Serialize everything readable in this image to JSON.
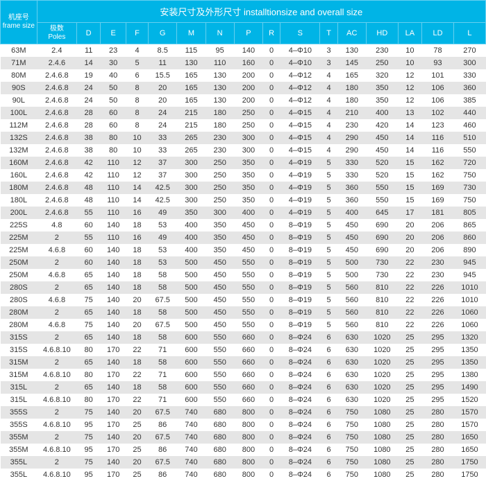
{
  "header": {
    "title": "安装尺寸及外形尺寸 installtionsize and overall size",
    "frame_cn": "机座号",
    "frame_en": "frame size",
    "poles_cn": "极数",
    "poles_en": "Poles",
    "cols": [
      "D",
      "E",
      "F",
      "G",
      "M",
      "N",
      "P",
      "R",
      "S",
      "T",
      "AC",
      "HD",
      "LA",
      "LD",
      "L"
    ]
  },
  "rows": [
    [
      "63M",
      "2.4",
      "11",
      "23",
      "4",
      "8.5",
      "115",
      "95",
      "140",
      "0",
      "4–Φ10",
      "3",
      "130",
      "230",
      "10",
      "78",
      "270"
    ],
    [
      "71M",
      "2.4.6",
      "14",
      "30",
      "5",
      "11",
      "130",
      "110",
      "160",
      "0",
      "4–Φ10",
      "3",
      "145",
      "250",
      "10",
      "93",
      "300"
    ],
    [
      "80M",
      "2.4.6.8",
      "19",
      "40",
      "6",
      "15.5",
      "165",
      "130",
      "200",
      "0",
      "4–Φ12",
      "4",
      "165",
      "320",
      "12",
      "101",
      "330"
    ],
    [
      "90S",
      "2.4.6.8",
      "24",
      "50",
      "8",
      "20",
      "165",
      "130",
      "200",
      "0",
      "4–Φ12",
      "4",
      "180",
      "350",
      "12",
      "106",
      "360"
    ],
    [
      "90L",
      "2.4.6.8",
      "24",
      "50",
      "8",
      "20",
      "165",
      "130",
      "200",
      "0",
      "4–Φ12",
      "4",
      "180",
      "350",
      "12",
      "106",
      "385"
    ],
    [
      "100L",
      "2.4.6.8",
      "28",
      "60",
      "8",
      "24",
      "215",
      "180",
      "250",
      "0",
      "4–Φ15",
      "4",
      "210",
      "400",
      "13",
      "102",
      "440"
    ],
    [
      "112M",
      "2.4.6.8",
      "28",
      "60",
      "8",
      "24",
      "215",
      "180",
      "250",
      "0",
      "4–Φ15",
      "4",
      "230",
      "420",
      "14",
      "123",
      "460"
    ],
    [
      "132S",
      "2.4.6.8",
      "38",
      "80",
      "10",
      "33",
      "265",
      "230",
      "300",
      "0",
      "4–Φ15",
      "4",
      "290",
      "450",
      "14",
      "116",
      "510"
    ],
    [
      "132M",
      "2.4.6.8",
      "38",
      "80",
      "10",
      "33",
      "265",
      "230",
      "300",
      "0",
      "4–Φ15",
      "4",
      "290",
      "450",
      "14",
      "116",
      "550"
    ],
    [
      "160M",
      "2.4.6.8",
      "42",
      "110",
      "12",
      "37",
      "300",
      "250",
      "350",
      "0",
      "4–Φ19",
      "5",
      "330",
      "520",
      "15",
      "162",
      "720"
    ],
    [
      "160L",
      "2.4.6.8",
      "42",
      "110",
      "12",
      "37",
      "300",
      "250",
      "350",
      "0",
      "4–Φ19",
      "5",
      "330",
      "520",
      "15",
      "162",
      "750"
    ],
    [
      "180M",
      "2.4.6.8",
      "48",
      "110",
      "14",
      "42.5",
      "300",
      "250",
      "350",
      "0",
      "4–Φ19",
      "5",
      "360",
      "550",
      "15",
      "169",
      "730"
    ],
    [
      "180L",
      "2.4.6.8",
      "48",
      "110",
      "14",
      "42.5",
      "300",
      "250",
      "350",
      "0",
      "4–Φ19",
      "5",
      "360",
      "550",
      "15",
      "169",
      "750"
    ],
    [
      "200L",
      "2.4.6.8",
      "55",
      "110",
      "16",
      "49",
      "350",
      "300",
      "400",
      "0",
      "4–Φ19",
      "5",
      "400",
      "645",
      "17",
      "181",
      "805"
    ],
    [
      "225S",
      "4.8",
      "60",
      "140",
      "18",
      "53",
      "400",
      "350",
      "450",
      "0",
      "8–Φ19",
      "5",
      "450",
      "690",
      "20",
      "206",
      "865"
    ],
    [
      "225M",
      "2",
      "55",
      "110",
      "16",
      "49",
      "400",
      "350",
      "450",
      "0",
      "8–Φ19",
      "5",
      "450",
      "690",
      "20",
      "206",
      "860"
    ],
    [
      "225M",
      "4.6.8",
      "60",
      "140",
      "18",
      "53",
      "400",
      "350",
      "450",
      "0",
      "8–Φ19",
      "5",
      "450",
      "690",
      "20",
      "206",
      "890"
    ],
    [
      "250M",
      "2",
      "60",
      "140",
      "18",
      "53",
      "500",
      "450",
      "550",
      "0",
      "8–Φ19",
      "5",
      "500",
      "730",
      "22",
      "230",
      "945"
    ],
    [
      "250M",
      "4.6.8",
      "65",
      "140",
      "18",
      "58",
      "500",
      "450",
      "550",
      "0",
      "8–Φ19",
      "5",
      "500",
      "730",
      "22",
      "230",
      "945"
    ],
    [
      "280S",
      "2",
      "65",
      "140",
      "18",
      "58",
      "500",
      "450",
      "550",
      "0",
      "8–Φ19",
      "5",
      "560",
      "810",
      "22",
      "226",
      "1010"
    ],
    [
      "280S",
      "4.6.8",
      "75",
      "140",
      "20",
      "67.5",
      "500",
      "450",
      "550",
      "0",
      "8–Φ19",
      "5",
      "560",
      "810",
      "22",
      "226",
      "1010"
    ],
    [
      "280M",
      "2",
      "65",
      "140",
      "18",
      "58",
      "500",
      "450",
      "550",
      "0",
      "8–Φ19",
      "5",
      "560",
      "810",
      "22",
      "226",
      "1060"
    ],
    [
      "280M",
      "4.6.8",
      "75",
      "140",
      "20",
      "67.5",
      "500",
      "450",
      "550",
      "0",
      "8–Φ19",
      "5",
      "560",
      "810",
      "22",
      "226",
      "1060"
    ],
    [
      "315S",
      "2",
      "65",
      "140",
      "18",
      "58",
      "600",
      "550",
      "660",
      "0",
      "8–Φ24",
      "6",
      "630",
      "1020",
      "25",
      "295",
      "1320"
    ],
    [
      "315S",
      "4.6.8.10",
      "80",
      "170",
      "22",
      "71",
      "600",
      "550",
      "660",
      "0",
      "8–Φ24",
      "6",
      "630",
      "1020",
      "25",
      "295",
      "1350"
    ],
    [
      "315M",
      "2",
      "65",
      "140",
      "18",
      "58",
      "600",
      "550",
      "660",
      "0",
      "8–Φ24",
      "6",
      "630",
      "1020",
      "25",
      "295",
      "1350"
    ],
    [
      "315M",
      "4.6.8.10",
      "80",
      "170",
      "22",
      "71",
      "600",
      "550",
      "660",
      "0",
      "8–Φ24",
      "6",
      "630",
      "1020",
      "25",
      "295",
      "1380"
    ],
    [
      "315L",
      "2",
      "65",
      "140",
      "18",
      "58",
      "600",
      "550",
      "660",
      "0",
      "8–Φ24",
      "6",
      "630",
      "1020",
      "25",
      "295",
      "1490"
    ],
    [
      "315L",
      "4.6.8.10",
      "80",
      "170",
      "22",
      "71",
      "600",
      "550",
      "660",
      "0",
      "8–Φ24",
      "6",
      "630",
      "1020",
      "25",
      "295",
      "1520"
    ],
    [
      "355S",
      "2",
      "75",
      "140",
      "20",
      "67.5",
      "740",
      "680",
      "800",
      "0",
      "8–Φ24",
      "6",
      "750",
      "1080",
      "25",
      "280",
      "1570"
    ],
    [
      "355S",
      "4.6.8.10",
      "95",
      "170",
      "25",
      "86",
      "740",
      "680",
      "800",
      "0",
      "8–Φ24",
      "6",
      "750",
      "1080",
      "25",
      "280",
      "1570"
    ],
    [
      "355M",
      "2",
      "75",
      "140",
      "20",
      "67.5",
      "740",
      "680",
      "800",
      "0",
      "8–Φ24",
      "6",
      "750",
      "1080",
      "25",
      "280",
      "1650"
    ],
    [
      "355M",
      "4.6.8.10",
      "95",
      "170",
      "25",
      "86",
      "740",
      "680",
      "800",
      "0",
      "8–Φ24",
      "6",
      "750",
      "1080",
      "25",
      "280",
      "1650"
    ],
    [
      "355L",
      "2",
      "75",
      "140",
      "20",
      "67.5",
      "740",
      "680",
      "800",
      "0",
      "8–Φ24",
      "6",
      "750",
      "1080",
      "25",
      "280",
      "1750"
    ],
    [
      "355L",
      "4.6.8.10",
      "95",
      "170",
      "25",
      "86",
      "740",
      "680",
      "800",
      "0",
      "8–Φ24",
      "6",
      "750",
      "1080",
      "25",
      "280",
      "1750"
    ]
  ],
  "style": {
    "header_bg": "#00b4e6",
    "header_fg": "#ffffff",
    "row_even": "#e5e5e5",
    "row_odd": "#ffffff",
    "font_size": 11
  }
}
